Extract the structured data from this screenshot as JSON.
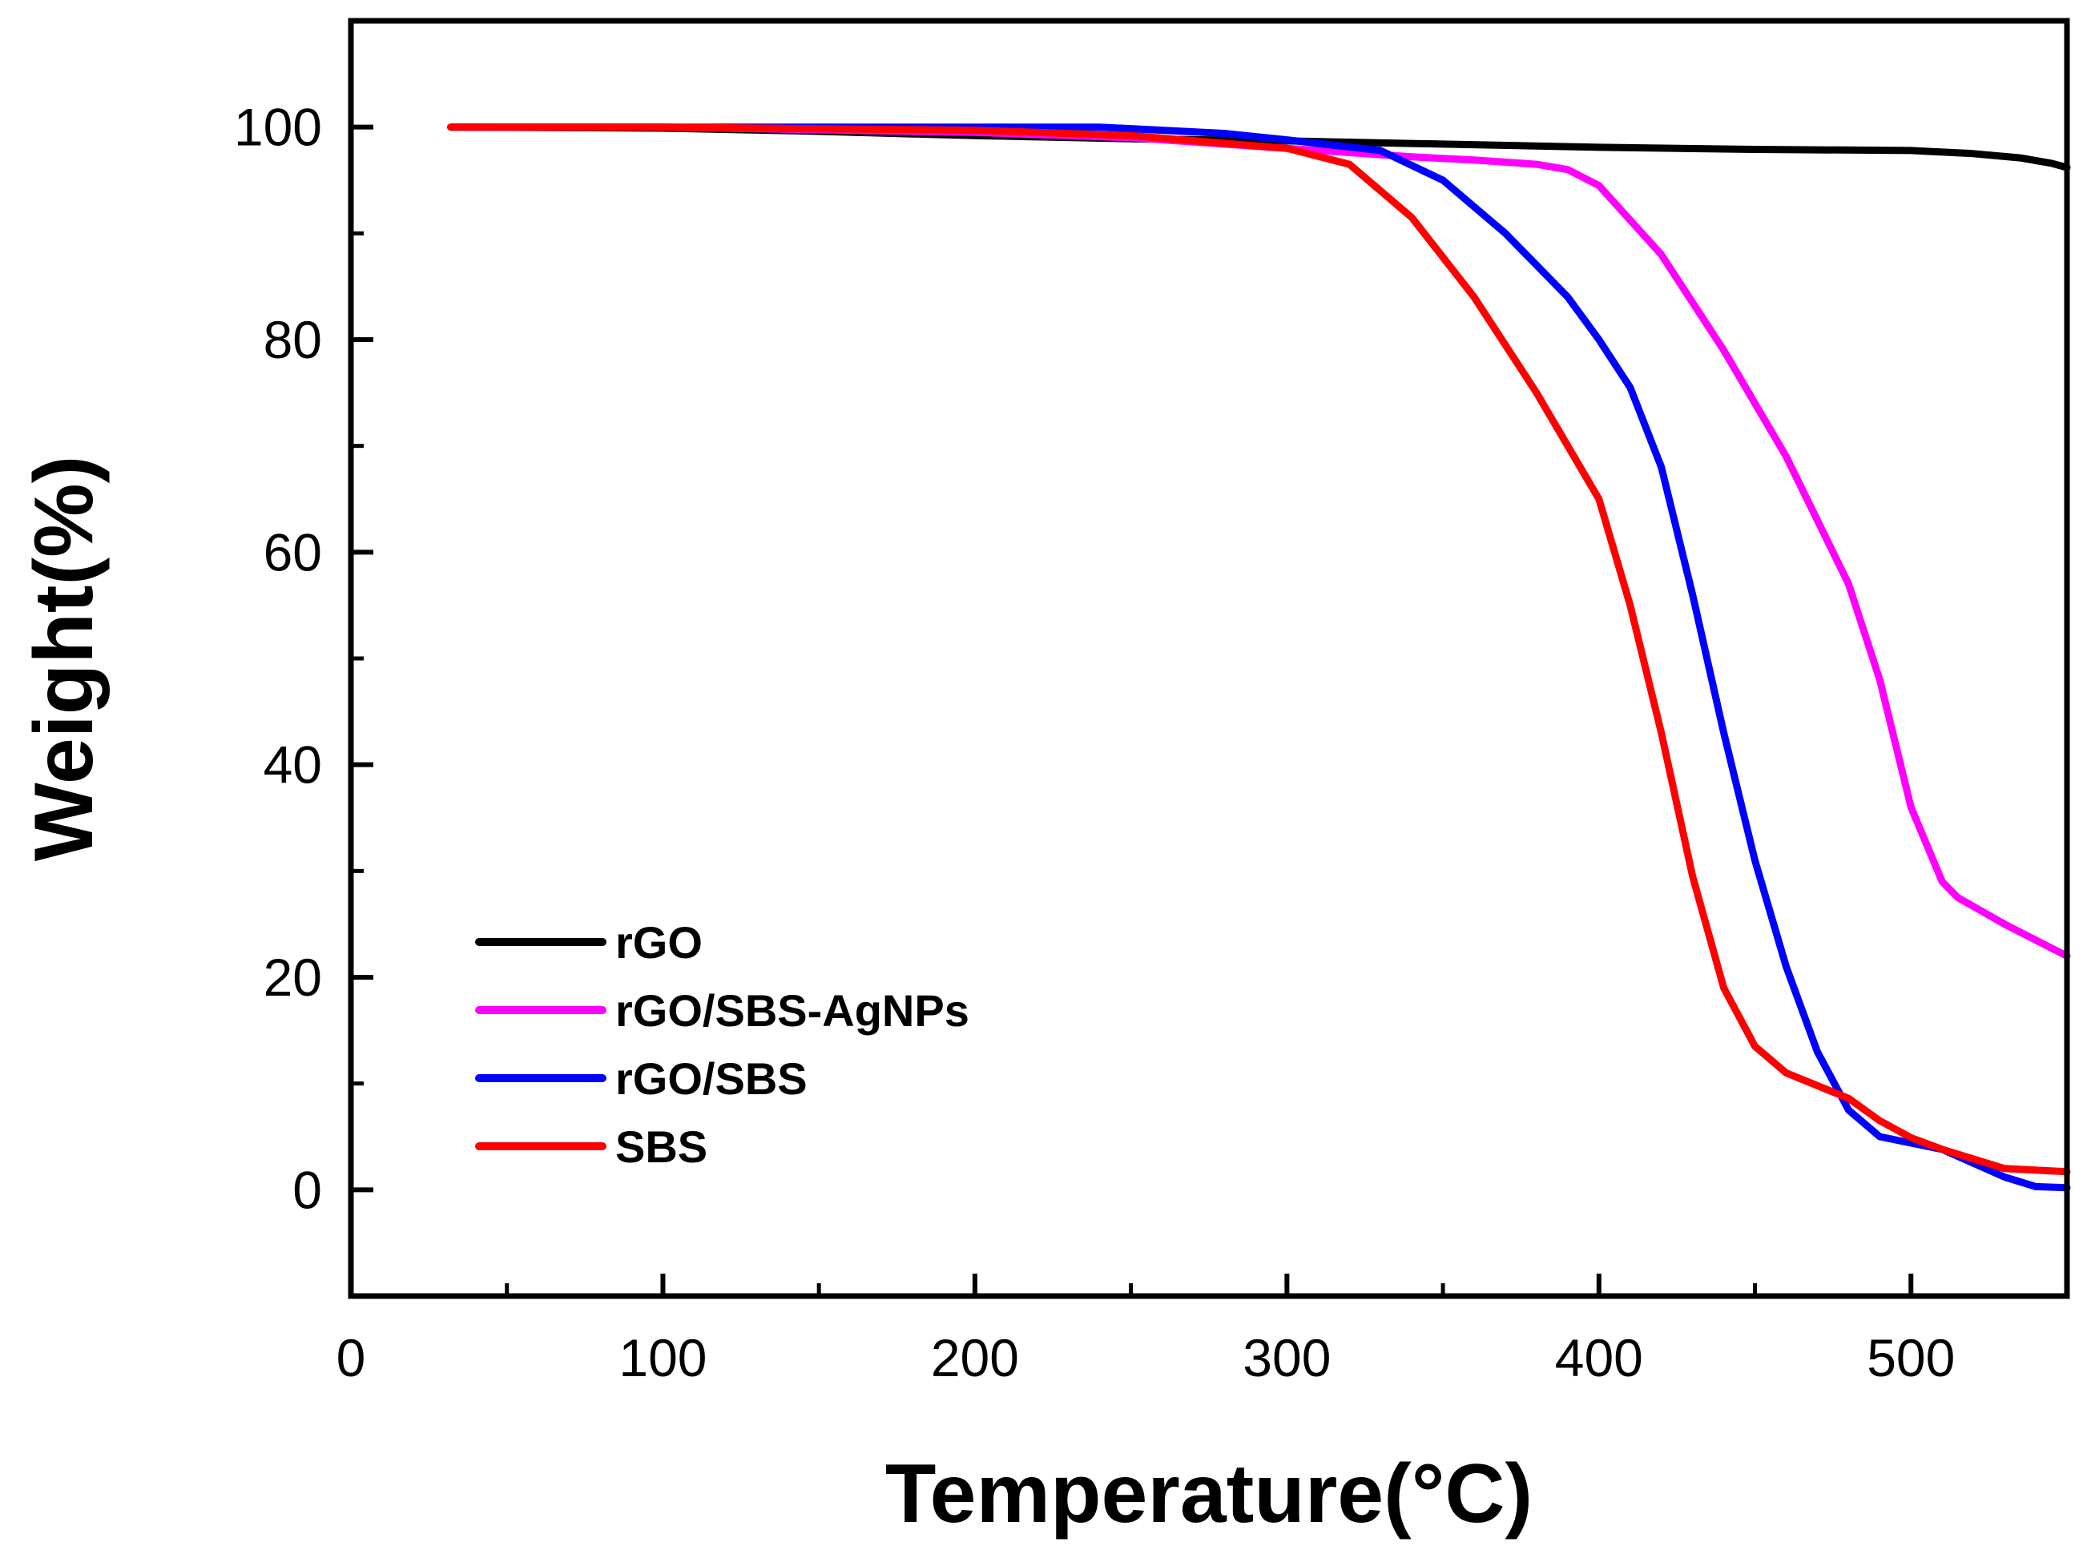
{
  "chart_data": {
    "type": "line",
    "title": "",
    "xlabel": "Temperature(°C)",
    "ylabel": "Weight(%)",
    "xlim": [
      0,
      550
    ],
    "ylim": [
      -10,
      110
    ],
    "x_ticks": [
      0,
      100,
      200,
      300,
      400,
      500
    ],
    "x_tick_labels": [
      "0",
      "100",
      "200",
      "300",
      "400",
      "500"
    ],
    "y_ticks": [
      0,
      20,
      40,
      60,
      80,
      100
    ],
    "y_tick_labels": [
      "0",
      "20",
      "40",
      "60",
      "80",
      "100"
    ],
    "grid": false,
    "legend_position": "lower-left",
    "series": [
      {
        "name": "rGO",
        "color": "#000000",
        "x": [
          32,
          100,
          150,
          200,
          250,
          300,
          350,
          400,
          450,
          500,
          520,
          535,
          545,
          550
        ],
        "y": [
          100,
          99.9,
          99.6,
          99.2,
          98.9,
          98.7,
          98.4,
          98.1,
          97.9,
          97.8,
          97.5,
          97.1,
          96.6,
          96.2
        ]
      },
      {
        "name": "rGO/SBS-AgNPs",
        "color": "#ff00ff",
        "x": [
          32,
          100,
          200,
          250,
          300,
          340,
          360,
          380,
          390,
          400,
          420,
          440,
          460,
          480,
          490,
          500,
          510,
          515,
          530,
          550
        ],
        "y": [
          100,
          100,
          99.5,
          99.0,
          98.0,
          97.2,
          96.9,
          96.5,
          96.0,
          94.5,
          88.0,
          79.0,
          69.0,
          57.0,
          48.0,
          36.0,
          29.0,
          27.5,
          25.0,
          22.0
        ]
      },
      {
        "name": "rGO/SBS",
        "color": "#0000ff",
        "x": [
          32,
          100,
          200,
          240,
          280,
          300,
          330,
          350,
          370,
          390,
          400,
          410,
          420,
          430,
          440,
          450,
          460,
          470,
          480,
          490,
          510,
          530,
          540,
          550
        ],
        "y": [
          100,
          100,
          100,
          100,
          99.4,
          98.8,
          97.8,
          95.0,
          90.0,
          84.0,
          80.0,
          75.5,
          68.0,
          56.0,
          43.0,
          31.0,
          21.0,
          13.0,
          7.5,
          5.0,
          3.8,
          1.2,
          0.3,
          0.2
        ]
      },
      {
        "name": "SBS",
        "color": "#ff0000",
        "x": [
          32,
          100,
          200,
          250,
          300,
          320,
          340,
          360,
          380,
          400,
          410,
          420,
          430,
          440,
          450,
          460,
          470,
          480,
          490,
          500,
          510,
          530,
          550
        ],
        "y": [
          100,
          100,
          99.7,
          99.2,
          98.0,
          96.5,
          91.5,
          84.0,
          75.0,
          65.0,
          55.0,
          43.0,
          29.5,
          19.0,
          13.5,
          11.0,
          9.8,
          8.6,
          6.5,
          4.9,
          3.8,
          2.0,
          1.7
        ]
      }
    ]
  }
}
